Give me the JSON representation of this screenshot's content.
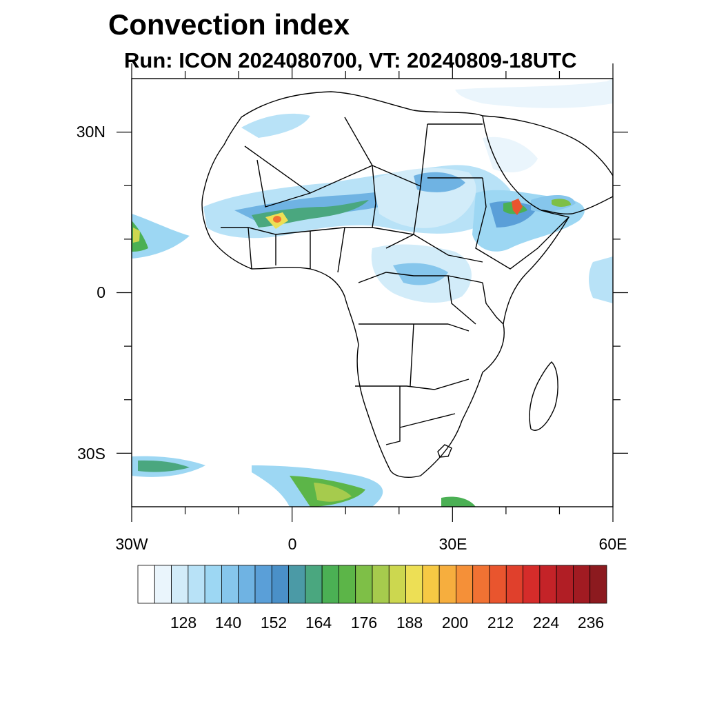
{
  "title": "Convection index",
  "subtitle": "Run: ICON 2024080700,  VT: 20240809-18UTC",
  "map": {
    "lon_range": [
      -30,
      60
    ],
    "lat_range": [
      -40,
      40
    ],
    "lat_labels": [
      "30N",
      "0",
      "30S"
    ],
    "lon_labels": [
      "30W",
      "0",
      "30E",
      "60E"
    ]
  },
  "colorbar": {
    "labels": [
      "128",
      "140",
      "152",
      "164",
      "176",
      "188",
      "200",
      "212",
      "224",
      "236"
    ],
    "colors": [
      "#ffffff",
      "#eaf5fc",
      "#d2ecf9",
      "#b8e2f7",
      "#9dd7f3",
      "#86c6ec",
      "#6fb3e3",
      "#5a9fd8",
      "#4a90c8",
      "#4b9aa6",
      "#4aa77f",
      "#4bb054",
      "#5cb548",
      "#7ebf47",
      "#a6cb4d",
      "#ccd74f",
      "#eddf55",
      "#f6c944",
      "#f6ae3e",
      "#f59038",
      "#f17233",
      "#e9552e",
      "#e0402c",
      "#d52c2a",
      "#c42328",
      "#b11e25",
      "#a11b22",
      "#8c1a1f"
    ]
  }
}
